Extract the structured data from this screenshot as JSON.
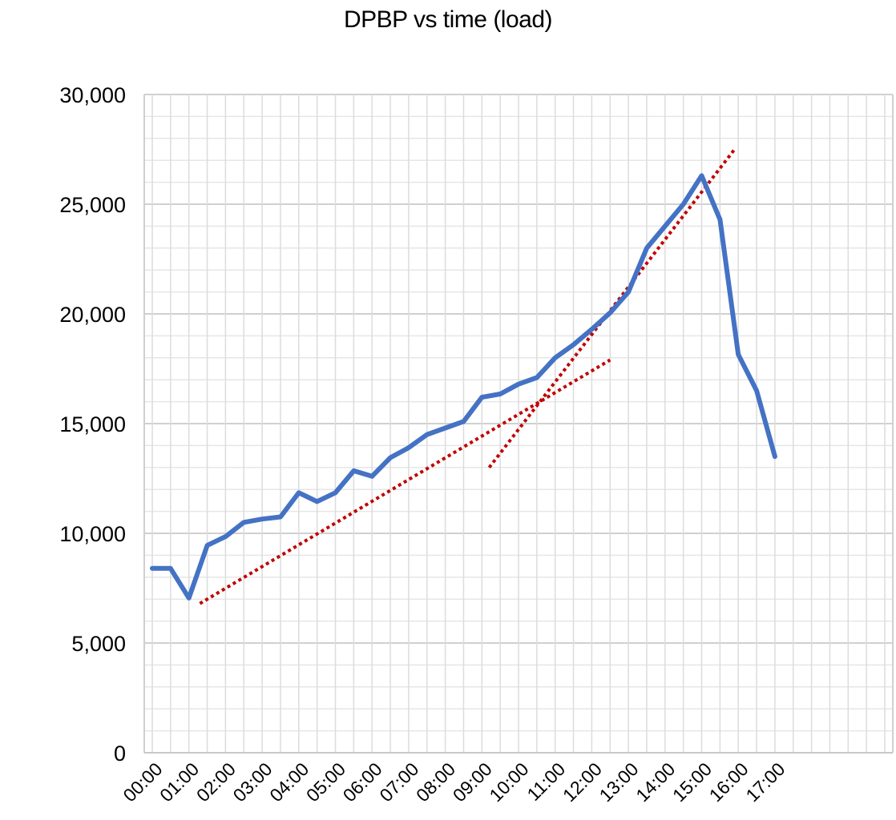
{
  "chart_data": {
    "type": "line",
    "title": "DPBP vs time (load)",
    "xlabel": "",
    "ylabel": "",
    "ylim": [
      0,
      30000
    ],
    "y_ticks": [
      0,
      5000,
      10000,
      15000,
      20000,
      25000,
      30000
    ],
    "y_tick_labels": [
      "0",
      "5,000",
      "10,000",
      "15,000",
      "20,000",
      "25,000",
      "30,000"
    ],
    "x_tick_labels": [
      "00:00",
      "01:00",
      "02:00",
      "03:00",
      "04:00",
      "05:00",
      "06:00",
      "07:00",
      "08:00",
      "09:00",
      "10:00",
      "11:00",
      "12:00",
      "13:00",
      "14:00",
      "15:00",
      "16:00",
      "17:00"
    ],
    "x_unit": "hours",
    "xlim": [
      0,
      20.5
    ],
    "grid": true,
    "legend": "none",
    "series": [
      {
        "color": "#4472c4",
        "style": "solid",
        "x": [
          0,
          0.5,
          1,
          1.5,
          2,
          2.5,
          3,
          3.5,
          4,
          4.5,
          5,
          5.5,
          6,
          6.5,
          7,
          7.5,
          8,
          8.5,
          9,
          9.5,
          10,
          10.5,
          11,
          11.5,
          12,
          12.5,
          13,
          13.5,
          14,
          14.5,
          15,
          15.5,
          16,
          16.5,
          17
        ],
        "values": [
          8400,
          8400,
          7050,
          9450,
          9850,
          10500,
          10650,
          10750,
          11850,
          11450,
          11850,
          12850,
          12600,
          13450,
          13900,
          14500,
          14800,
          15100,
          16200,
          16350,
          16800,
          17100,
          18000,
          18600,
          19300,
          20050,
          21000,
          23000,
          24000,
          25000,
          26300,
          24300,
          18150,
          16500,
          13500
        ]
      },
      {
        "color": "#c00000",
        "style": "dotted",
        "x": [
          1.3,
          12.5
        ],
        "values": [
          6800,
          17900
        ]
      },
      {
        "color": "#c00000",
        "style": "dotted",
        "x": [
          9.2,
          15.9
        ],
        "values": [
          13000,
          27500
        ]
      }
    ]
  }
}
